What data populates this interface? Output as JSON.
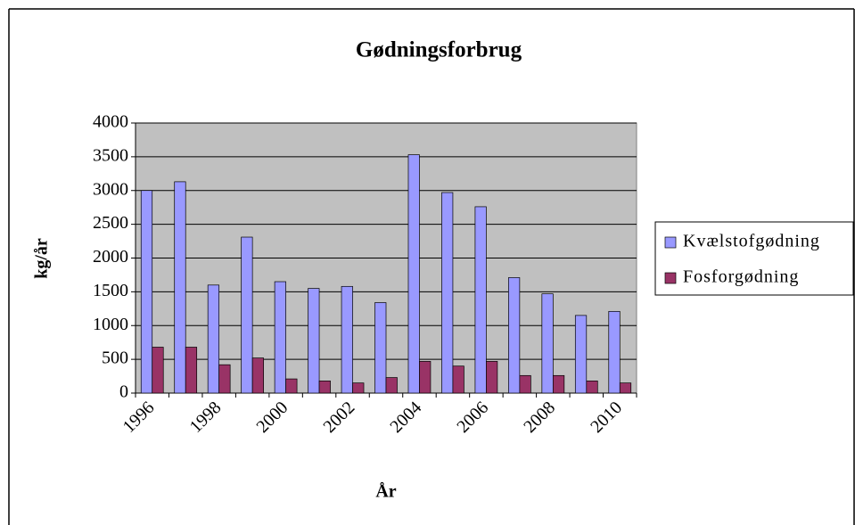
{
  "chart_data": {
    "type": "bar",
    "title": "Gødningsforbrug",
    "x_label": "År",
    "y_label": "kg/år",
    "categories": [
      "1996",
      null,
      "1998",
      null,
      "2000",
      null,
      "2002",
      null,
      "2004",
      null,
      "2006",
      null,
      "2008",
      null,
      "2010"
    ],
    "series": [
      {
        "name": "Kvælstofgødning",
        "color": "#9999ff",
        "values": [
          3000,
          3130,
          1600,
          2310,
          1650,
          1550,
          1580,
          1340,
          3530,
          2970,
          2760,
          1710,
          1470,
          1150,
          1210
        ]
      },
      {
        "name": "Fosforgødning",
        "color": "#993366",
        "values": [
          680,
          680,
          420,
          520,
          210,
          180,
          150,
          230,
          470,
          400,
          470,
          260,
          260,
          180,
          150
        ]
      }
    ],
    "ylim": [
      0,
      4000
    ],
    "yticks": [
      0,
      500,
      1000,
      1500,
      2000,
      2500,
      3000,
      3500,
      4000
    ],
    "grid": true,
    "legend": "right"
  }
}
